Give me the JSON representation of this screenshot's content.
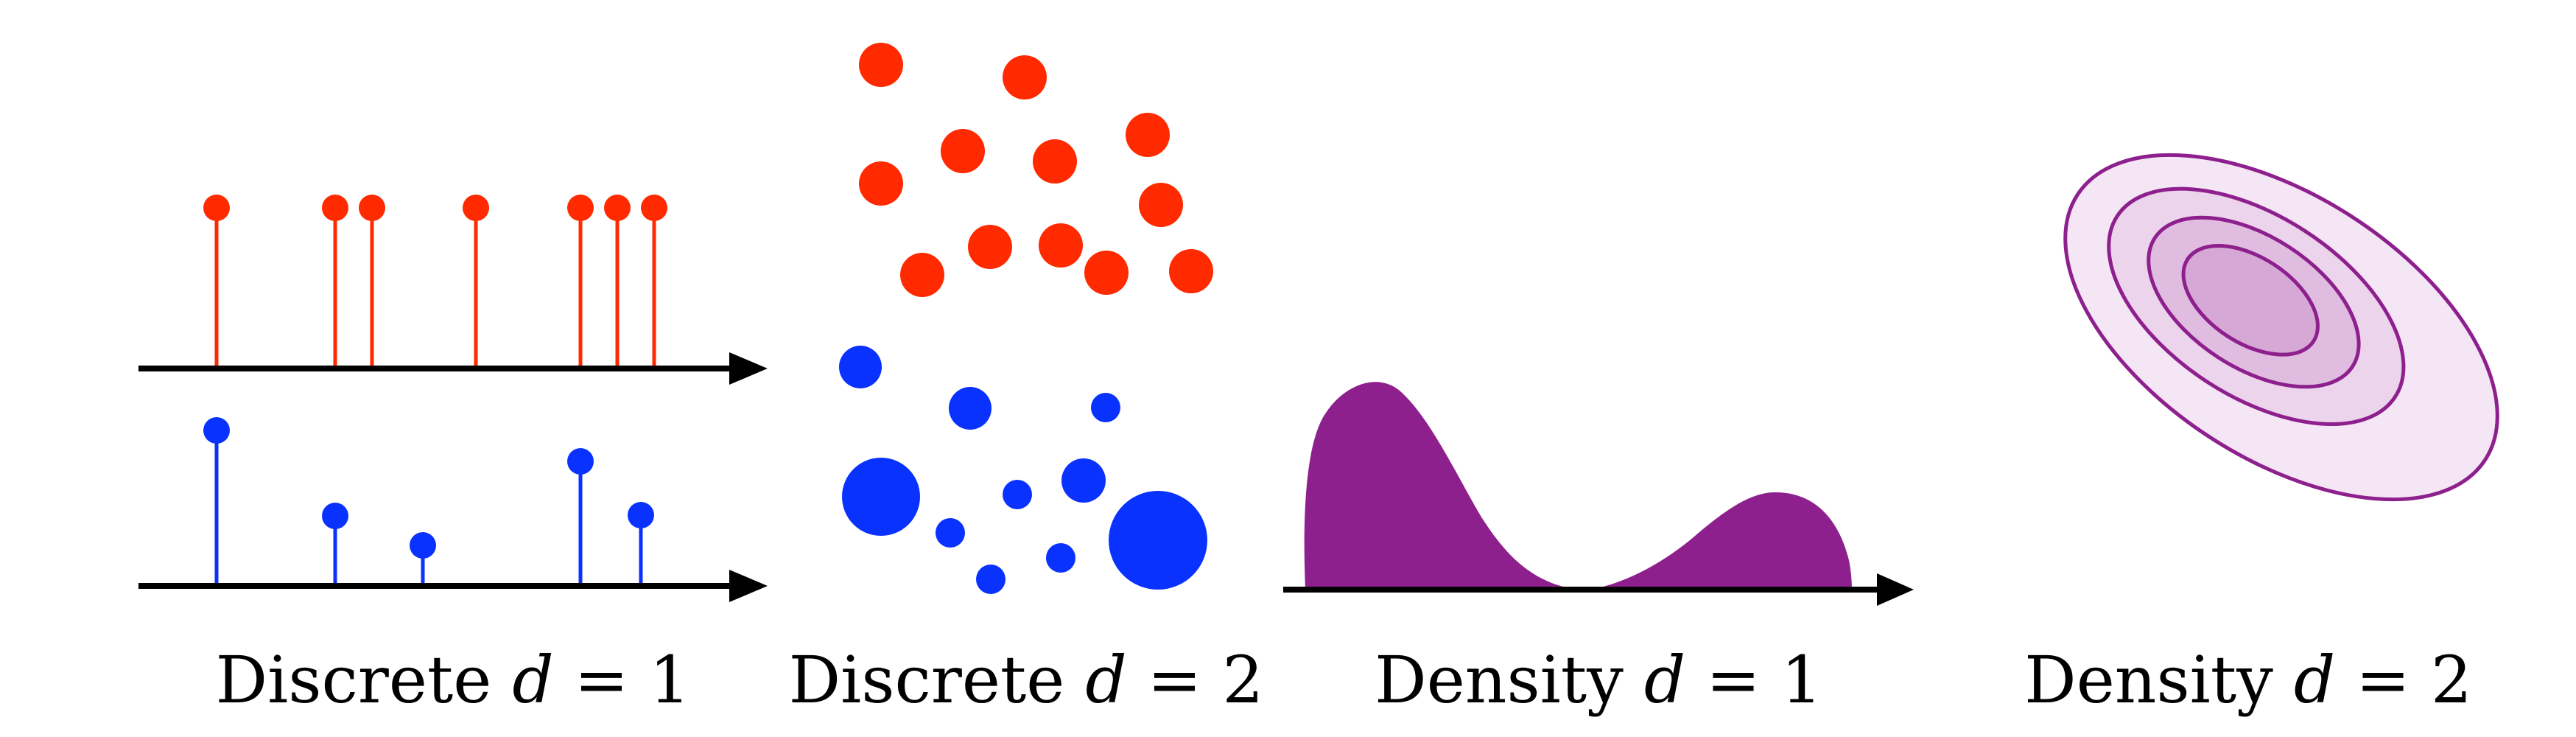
{
  "colors": {
    "red": "#ff2a00",
    "blue": "#0a32ff",
    "purple": "#8e208e",
    "axis": "#000000",
    "contour_fill_outer": "#f5e6f5",
    "contour_fill_mid": "#ecd4ec",
    "contour_fill_inner": "#e0bde0",
    "contour_fill_core": "#d6a8d6"
  },
  "panels": [
    {
      "id": "discrete-1d",
      "caption": {
        "word": "Discrete",
        "var": "d",
        "eq": "= 1"
      }
    },
    {
      "id": "discrete-2d",
      "caption": {
        "word": "Discrete",
        "var": "d",
        "eq": "= 2"
      }
    },
    {
      "id": "density-1d",
      "caption": {
        "word": "Density",
        "var": "d",
        "eq": "= 1"
      }
    },
    {
      "id": "density-2d",
      "caption": {
        "word": "Density",
        "var": "d",
        "eq": "= 2"
      }
    }
  ],
  "icons": {
    "axis_arrow": "arrow-right-icon",
    "stem": "lollipop-stem-icon",
    "point": "dot-icon"
  }
}
